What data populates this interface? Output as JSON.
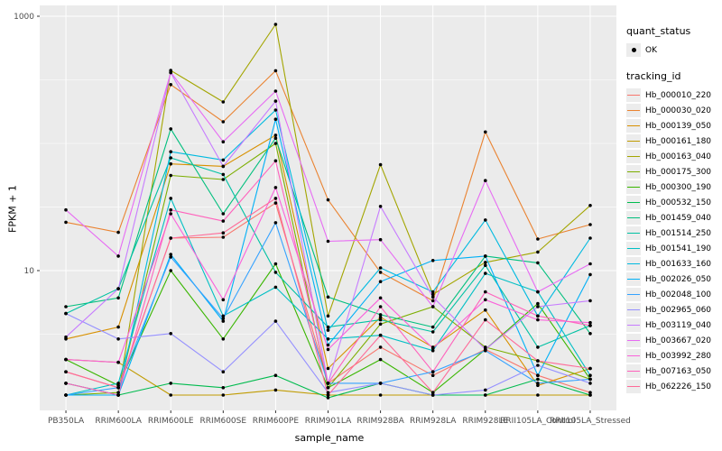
{
  "figure": {
    "panel_bg": "#EBEBEB",
    "grid_color": "#FFFFFF",
    "point_color": "#000000",
    "tick_label_color": "#4D4D4D",
    "axis_title_color": "#000000"
  },
  "y_axis": {
    "title": "FPKM + 1",
    "scale": "log10",
    "major_ticks": [
      {
        "label": "1000",
        "value": 1000
      },
      {
        "label": "10",
        "value": 10
      }
    ],
    "minor_grid_values": [
      316.2,
      100,
      31.6,
      3.162
    ]
  },
  "x_axis": {
    "title": "sample_name"
  },
  "legend": {
    "quant_title": "quant_status",
    "quant_item_label": "OK",
    "tracking_title": "tracking_id"
  },
  "chart_data": {
    "type": "line",
    "title": "",
    "xlabel": "sample_name",
    "ylabel": "FPKM + 1",
    "y_scale": "log10",
    "ylim": [
      0.8,
      1100
    ],
    "grid": true,
    "legend_position": "right",
    "quant_status_all_points": "OK",
    "x_categories": [
      "PB350LA",
      "RRIM600LA",
      "RRIM600LE",
      "RRIM600SE",
      "RRIM600PE",
      "RRIM901LA",
      "RRIM928BA",
      "RRIM928LA",
      "RRIM928LE",
      "RRII105LA_Control",
      "RRII105LA_Stressed"
    ],
    "series": [
      {
        "name": "Hb_000010_220",
        "color": "#F8766D",
        "values": [
          1.6,
          1.2,
          18,
          18.3,
          34,
          1.3,
          2.5,
          1.5,
          2.4,
          1.5,
          1.1
        ]
      },
      {
        "name": "Hb_000030_020",
        "color": "#EA8331",
        "values": [
          24,
          20,
          290,
          148,
          373,
          36,
          9.7,
          5.8,
          123,
          17.7,
          23
        ]
      },
      {
        "name": "Hb_000139_050",
        "color": "#D89000",
        "values": [
          2.9,
          3.6,
          69,
          66,
          116,
          1.7,
          4.3,
          2.5,
          4.9,
          1.25,
          1.7
        ]
      },
      {
        "name": "Hb_000161_180",
        "color": "#C09B00",
        "values": [
          2.0,
          1.9,
          1.05,
          1.05,
          1.15,
          1.05,
          1.05,
          1.05,
          1.05,
          1.05,
          1.05
        ]
      },
      {
        "name": "Hb_000163_040",
        "color": "#A3A500",
        "values": [
          1.3,
          1.05,
          375,
          212,
          863,
          4.4,
          68,
          6.5,
          11.6,
          14,
          32.5
        ]
      },
      {
        "name": "Hb_000175_300",
        "color": "#7CAE00",
        "values": [
          1.05,
          1.1,
          56,
          52,
          100,
          1.2,
          3.8,
          5.2,
          2.5,
          1.95,
          1.4
        ]
      },
      {
        "name": "Hb_000300_190",
        "color": "#39B600",
        "values": [
          2.0,
          1.25,
          10,
          2.9,
          11.3,
          1.2,
          2.0,
          1.1,
          2.4,
          5.5,
          1.4
        ]
      },
      {
        "name": "Hb_000532_150",
        "color": "#00BB4E",
        "values": [
          1.05,
          1.05,
          1.3,
          1.2,
          1.5,
          1.0,
          1.3,
          1.05,
          1.05,
          1.4,
          1.05
        ]
      },
      {
        "name": "Hb_001459_040",
        "color": "#00BF7D",
        "values": [
          5.2,
          6.1,
          130,
          28,
          110,
          6.2,
          4.5,
          3.6,
          13,
          11.5,
          3.2
        ]
      },
      {
        "name": "Hb_001514_250",
        "color": "#00C1A3",
        "values": [
          4.6,
          7.2,
          77,
          57,
          9.7,
          3.6,
          4.1,
          3.3,
          11,
          2.5,
          3.7
        ]
      },
      {
        "name": "Hb_001541_190",
        "color": "#00BFC4",
        "values": [
          1.05,
          1.3,
          37,
          4.4,
          7.4,
          2.9,
          3.1,
          2.35,
          9.5,
          6.8,
          1.5
        ]
      },
      {
        "name": "Hb_001633_160",
        "color": "#00BAE0",
        "values": [
          1.3,
          1.05,
          86,
          74,
          183,
          3.4,
          10.5,
          6.8,
          25,
          4.4,
          18
        ]
      },
      {
        "name": "Hb_002026_050",
        "color": "#00B0F6",
        "values": [
          1.05,
          1.05,
          13.4,
          4.0,
          155,
          2.6,
          8.2,
          12,
          13,
          1.5,
          9.3
        ]
      },
      {
        "name": "Hb_002048_100",
        "color": "#35A2FF",
        "values": [
          1.05,
          1.2,
          12.8,
          4.2,
          23.8,
          1.3,
          1.3,
          1.6,
          2.35,
          1.3,
          1.4
        ]
      },
      {
        "name": "Hb_002965_060",
        "color": "#9590FF",
        "values": [
          4.6,
          2.9,
          3.2,
          1.6,
          4.0,
          1.1,
          1.3,
          1.05,
          1.15,
          1.8,
          1.3
        ]
      },
      {
        "name": "Hb_003119_040",
        "color": "#C77CFF",
        "values": [
          3.0,
          7.2,
          360,
          66,
          215,
          1.3,
          32,
          6.2,
          2.4,
          5.2,
          5.8
        ]
      },
      {
        "name": "Hb_003667_020",
        "color": "#E76BF3",
        "values": [
          30,
          13,
          363,
          103,
          258,
          17,
          17.5,
          5.2,
          51,
          6.8,
          11.3
        ]
      },
      {
        "name": "Hb_003992_280",
        "color": "#FA62DB",
        "values": [
          2.0,
          1.9,
          28,
          5.9,
          45,
          2.4,
          6.1,
          2.45,
          5.9,
          4.1,
          3.9
        ]
      },
      {
        "name": "Hb_007163_050",
        "color": "#FF62BC",
        "values": [
          1.3,
          1.05,
          30,
          24.5,
          73,
          1.3,
          5.2,
          1.6,
          6.8,
          4.4,
          3.7
        ]
      },
      {
        "name": "Hb_062226_150",
        "color": "#FF6A98",
        "values": [
          1.6,
          1.2,
          18,
          19.8,
          37,
          1.05,
          3.1,
          1.1,
          4.1,
          1.95,
          1.7
        ]
      }
    ]
  }
}
